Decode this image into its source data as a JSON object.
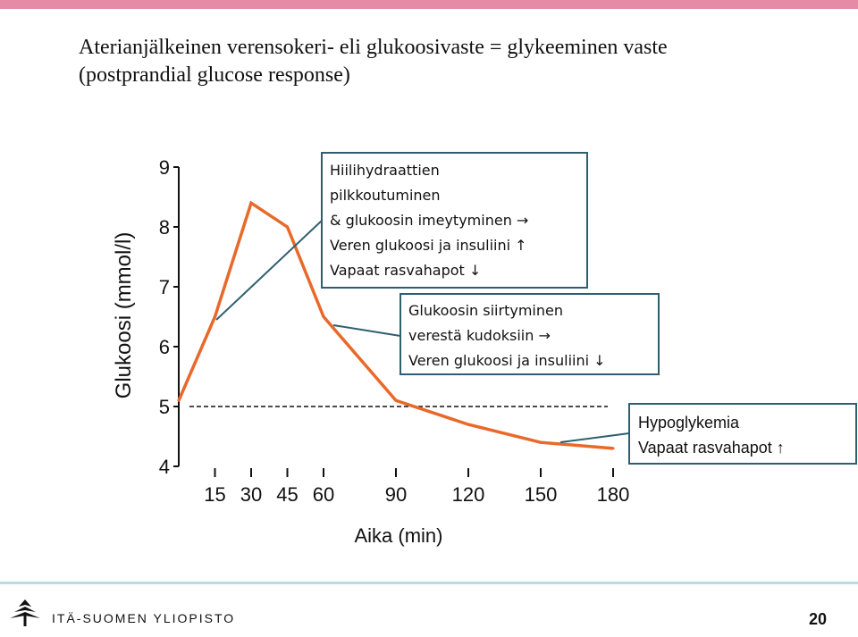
{
  "slide": {
    "title_line1": "Aterianjälkeinen verensokeri- eli glukoosivaste = glykeeminen vaste",
    "title_line2": "(postprandial glucose response)",
    "university": "ITÄ-SUOMEN YLIOPISTO",
    "page_number": "20"
  },
  "annotations": {
    "box1": [
      "Hiilihydraattien",
      "pilkkoutuminen",
      "& glukoosin imeytyminen →",
      "Veren glukoosi ja insuliini ↑",
      "Vapaat rasvahapot ↓"
    ],
    "box2": [
      "Glukoosin siirtyminen",
      "verestä kudoksiin →",
      "Veren glukoosi ja insuliini ↓"
    ],
    "box3": [
      "Hypoglykemia",
      "Vapaat rasvahapot ↑"
    ]
  },
  "colors": {
    "line": "#e8692a",
    "box_border": "#2f5f6f",
    "top_bar": "#e58ba8",
    "footer_line": "#b7dbe8"
  },
  "chart_data": {
    "type": "line",
    "title": "",
    "xlabel": "Aika (min)",
    "ylabel": "Glukoosi (mmol/l)",
    "x": [
      0,
      15,
      30,
      45,
      60,
      90,
      120,
      150,
      180
    ],
    "x_ticks": [
      15,
      30,
      45,
      60,
      90,
      120,
      150,
      180
    ],
    "y_ticks": [
      4,
      5,
      6,
      7,
      8,
      9
    ],
    "xlim": [
      0,
      180
    ],
    "ylim": [
      4,
      9
    ],
    "series": [
      {
        "values": [
          5.1,
          6.5,
          8.4,
          8.0,
          6.5,
          5.1,
          4.7,
          4.4,
          4.3
        ]
      }
    ],
    "baseline": 5.0,
    "grid": false
  }
}
